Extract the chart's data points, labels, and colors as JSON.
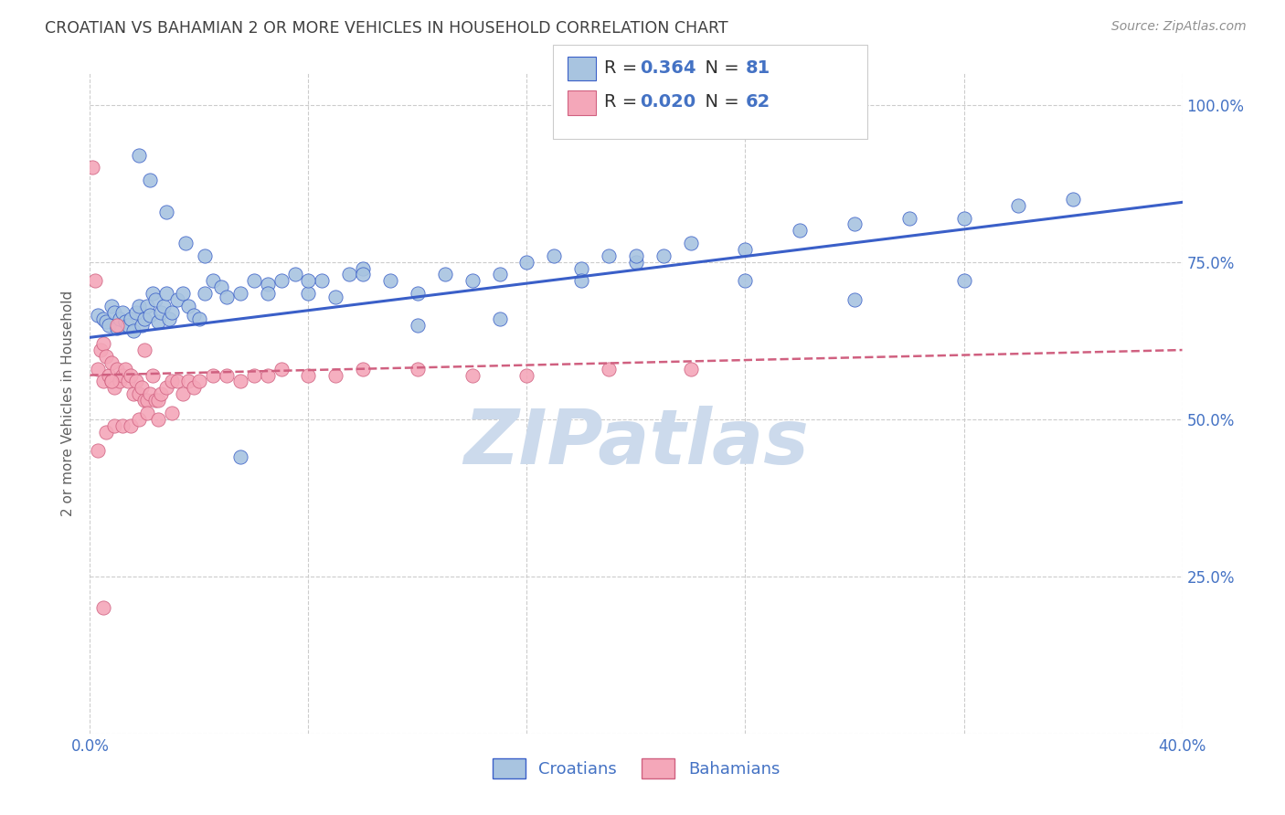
{
  "title": "CROATIAN VS BAHAMIAN 2 OR MORE VEHICLES IN HOUSEHOLD CORRELATION CHART",
  "source": "Source: ZipAtlas.com",
  "ylabel": "2 or more Vehicles in Household",
  "xmin": 0.0,
  "xmax": 0.4,
  "ymin": 0.0,
  "ymax": 1.05,
  "ytick_labels": [
    "",
    "25.0%",
    "50.0%",
    "75.0%",
    "100.0%"
  ],
  "ytick_values": [
    0.0,
    0.25,
    0.5,
    0.75,
    1.0
  ],
  "xtick_labels": [
    "0.0%",
    "",
    "",
    "",
    "",
    "40.0%"
  ],
  "xtick_values": [
    0.0,
    0.08,
    0.16,
    0.24,
    0.32,
    0.4
  ],
  "legend_croatians": "Croatians",
  "legend_bahamians": "Bahamians",
  "r_croatian": 0.364,
  "n_croatian": 81,
  "r_bahamian": 0.02,
  "n_bahamian": 62,
  "croatian_color": "#a8c4e0",
  "bahamian_color": "#f4a7b9",
  "line_croatian_color": "#3a5fc8",
  "line_bahamian_color": "#d06080",
  "title_color": "#404040",
  "source_color": "#909090",
  "tick_label_color": "#4472c4",
  "watermark_color": "#ccdaec",
  "croatian_points_x": [
    0.003,
    0.005,
    0.006,
    0.007,
    0.008,
    0.009,
    0.01,
    0.011,
    0.012,
    0.013,
    0.014,
    0.015,
    0.016,
    0.017,
    0.018,
    0.019,
    0.02,
    0.021,
    0.022,
    0.023,
    0.024,
    0.025,
    0.026,
    0.027,
    0.028,
    0.029,
    0.03,
    0.032,
    0.034,
    0.036,
    0.038,
    0.04,
    0.042,
    0.045,
    0.048,
    0.05,
    0.055,
    0.06,
    0.065,
    0.07,
    0.075,
    0.08,
    0.085,
    0.09,
    0.095,
    0.1,
    0.11,
    0.12,
    0.13,
    0.14,
    0.15,
    0.16,
    0.17,
    0.18,
    0.19,
    0.2,
    0.21,
    0.22,
    0.24,
    0.26,
    0.28,
    0.3,
    0.32,
    0.34,
    0.36,
    0.018,
    0.022,
    0.028,
    0.035,
    0.042,
    0.055,
    0.065,
    0.08,
    0.1,
    0.12,
    0.15,
    0.18,
    0.2,
    0.24,
    0.28,
    0.32
  ],
  "croatian_points_y": [
    0.665,
    0.66,
    0.655,
    0.65,
    0.68,
    0.67,
    0.645,
    0.66,
    0.67,
    0.655,
    0.65,
    0.66,
    0.64,
    0.67,
    0.68,
    0.65,
    0.66,
    0.68,
    0.665,
    0.7,
    0.69,
    0.655,
    0.67,
    0.68,
    0.7,
    0.66,
    0.67,
    0.69,
    0.7,
    0.68,
    0.665,
    0.66,
    0.7,
    0.72,
    0.71,
    0.695,
    0.7,
    0.72,
    0.715,
    0.72,
    0.73,
    0.7,
    0.72,
    0.695,
    0.73,
    0.74,
    0.72,
    0.7,
    0.73,
    0.72,
    0.73,
    0.75,
    0.76,
    0.74,
    0.76,
    0.75,
    0.76,
    0.78,
    0.77,
    0.8,
    0.81,
    0.82,
    0.82,
    0.84,
    0.85,
    0.92,
    0.88,
    0.83,
    0.78,
    0.76,
    0.44,
    0.7,
    0.72,
    0.73,
    0.65,
    0.66,
    0.72,
    0.76,
    0.72,
    0.69,
    0.72
  ],
  "bahamian_points_x": [
    0.001,
    0.002,
    0.003,
    0.004,
    0.005,
    0.005,
    0.006,
    0.007,
    0.008,
    0.008,
    0.009,
    0.01,
    0.011,
    0.012,
    0.013,
    0.014,
    0.015,
    0.016,
    0.017,
    0.018,
    0.019,
    0.02,
    0.021,
    0.022,
    0.023,
    0.024,
    0.025,
    0.026,
    0.028,
    0.03,
    0.032,
    0.034,
    0.036,
    0.038,
    0.04,
    0.045,
    0.05,
    0.055,
    0.06,
    0.065,
    0.07,
    0.08,
    0.09,
    0.1,
    0.12,
    0.14,
    0.16,
    0.19,
    0.22,
    0.003,
    0.006,
    0.009,
    0.012,
    0.015,
    0.018,
    0.021,
    0.025,
    0.03,
    0.02,
    0.01,
    0.008,
    0.005
  ],
  "bahamian_points_y": [
    0.9,
    0.72,
    0.58,
    0.61,
    0.56,
    0.62,
    0.6,
    0.57,
    0.59,
    0.56,
    0.55,
    0.58,
    0.56,
    0.57,
    0.58,
    0.56,
    0.57,
    0.54,
    0.56,
    0.54,
    0.55,
    0.53,
    0.53,
    0.54,
    0.57,
    0.53,
    0.53,
    0.54,
    0.55,
    0.56,
    0.56,
    0.54,
    0.56,
    0.55,
    0.56,
    0.57,
    0.57,
    0.56,
    0.57,
    0.57,
    0.58,
    0.57,
    0.57,
    0.58,
    0.58,
    0.57,
    0.57,
    0.58,
    0.58,
    0.45,
    0.48,
    0.49,
    0.49,
    0.49,
    0.5,
    0.51,
    0.5,
    0.51,
    0.61,
    0.65,
    0.56,
    0.2
  ],
  "croatian_line_y0": 0.63,
  "croatian_line_y1": 0.845,
  "bahamian_line_y0": 0.57,
  "bahamian_line_y1": 0.61
}
